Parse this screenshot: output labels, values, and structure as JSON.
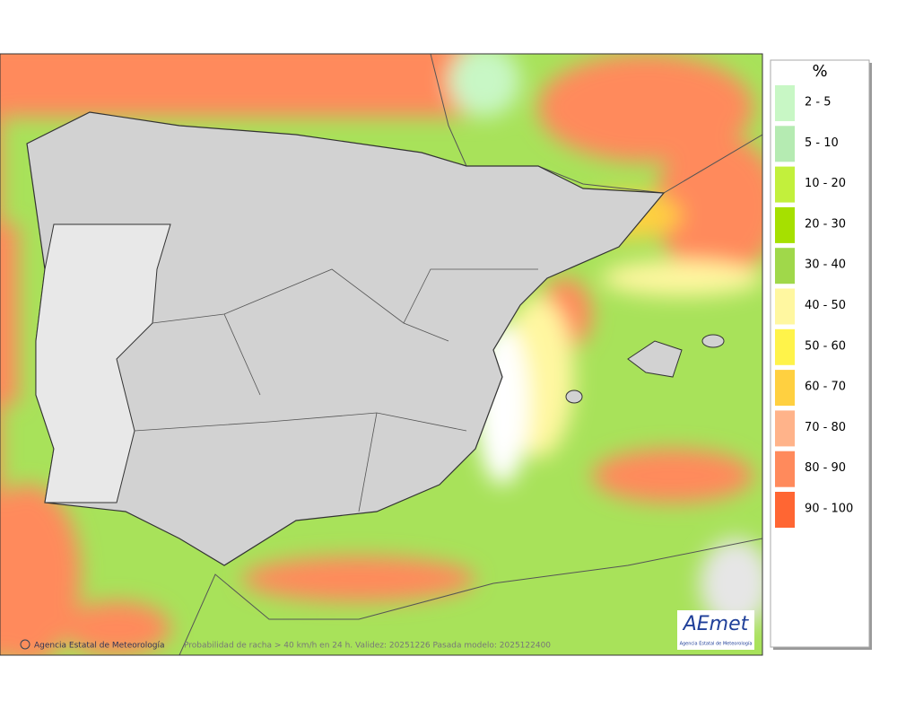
{
  "legend": {
    "title": "%",
    "items": [
      {
        "label": "2 - 5",
        "color": "#c8f7c5"
      },
      {
        "label": "5 - 10",
        "color": "#b5ebb2"
      },
      {
        "label": "10 - 20",
        "color": "#c2f03c"
      },
      {
        "label": "20 - 30",
        "color": "#a6e000"
      },
      {
        "label": "30 - 40",
        "color": "#a0d84a"
      },
      {
        "label": "40 - 50",
        "color": "#fff7a0"
      },
      {
        "label": "50 - 60",
        "color": "#fff34a"
      },
      {
        "label": "60 - 70",
        "color": "#ffd040"
      },
      {
        "label": "70 - 80",
        "color": "#ffb38a"
      },
      {
        "label": "80 - 90",
        "color": "#ff8a5c"
      },
      {
        "label": "90 - 100",
        "color": "#ff6633"
      }
    ]
  },
  "footer": {
    "credit": "Agencia Estatal de Meteorología",
    "caption": "Probabilidad de racha > 40 km/h en 24 h. Validez: 20251226 Pasada modelo: 2025122400"
  },
  "logo": {
    "name": "AEmet",
    "subtitle": "Agencia Estatal de Meteorología"
  }
}
